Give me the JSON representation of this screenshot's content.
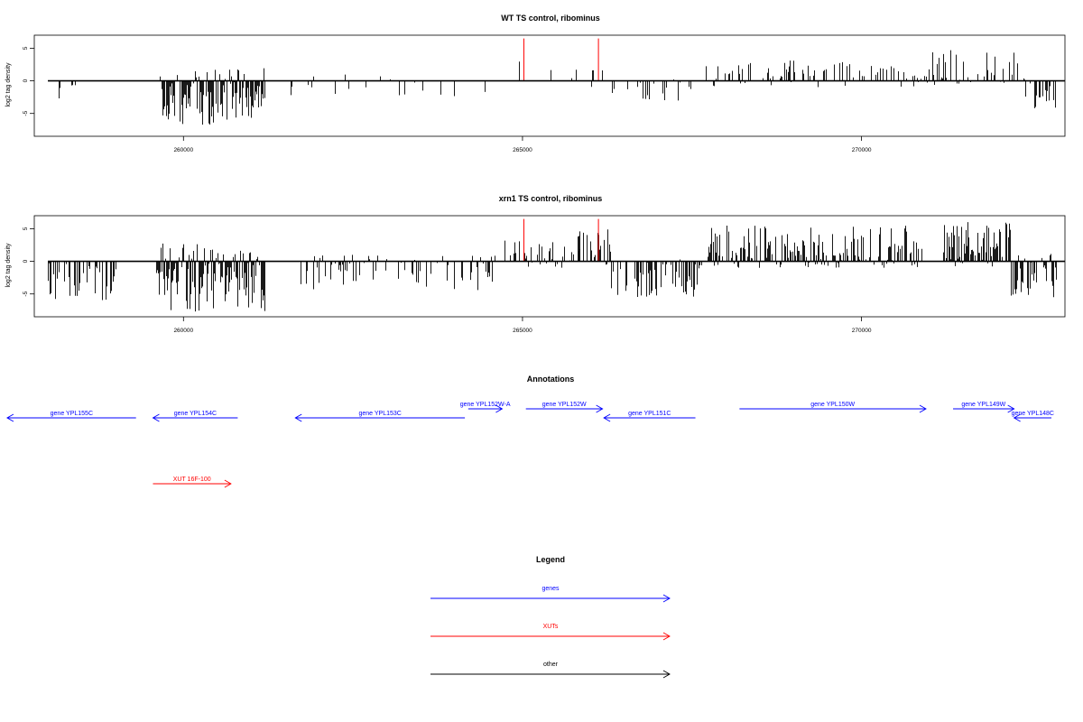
{
  "chart_data": [
    {
      "type": "bar",
      "title": "WT TS control, ribominus",
      "xlabel": "",
      "ylabel": "log2 tag density",
      "xlim": [
        257800,
        273000
      ],
      "ylim": [
        -8.5,
        7
      ],
      "x_ticks": [
        260000,
        265000,
        270000
      ],
      "x_tick_labels": [
        "260000",
        "265000",
        "270000"
      ],
      "y_ticks": [
        -5,
        0,
        5
      ],
      "y_tick_labels": [
        "-5",
        "0",
        "5"
      ],
      "baseline": {
        "x": [
          258000,
          273000
        ],
        "y": 0
      },
      "series": [
        {
          "color": "#000000",
          "regions": [
            {
              "x": [
                258050,
                258800
              ],
              "y": [
                -2.8,
                0.2
              ],
              "density": 0.1
            },
            {
              "x": [
                259650,
                261200
              ],
              "y": [
                -6.8,
                2.0
              ],
              "density": 0.8
            },
            {
              "x": [
                261500,
                264700
              ],
              "y": [
                -2.5,
                1.0
              ],
              "density": 0.07
            },
            {
              "x": [
                264900,
                265650
              ],
              "y": [
                -0.8,
                3.0
              ],
              "density": 0.12
            },
            {
              "x": [
                265650,
                266300
              ],
              "y": [
                -1.0,
                3.0
              ],
              "density": 0.15
            },
            {
              "x": [
                266300,
                267600
              ],
              "y": [
                -3.2,
                0.5
              ],
              "density": 0.25
            },
            {
              "x": [
                267700,
                270700
              ],
              "y": [
                -1.0,
                3.2
              ],
              "density": 0.3
            },
            {
              "x": [
                270700,
                272400
              ],
              "y": [
                -1.0,
                4.7
              ],
              "density": 0.4
            },
            {
              "x": [
                272400,
                272900
              ],
              "y": [
                -4.8,
                0.5
              ],
              "density": 0.35
            }
          ]
        },
        {
          "color": "#ff0000",
          "bars": [
            {
              "x": 265020,
              "y": 6.5
            },
            {
              "x": 266120,
              "y": 6.5
            }
          ]
        }
      ]
    },
    {
      "type": "bar",
      "title": "xrn1 TS control, ribominus",
      "xlabel": "",
      "ylabel": "log2 tag density",
      "xlim": [
        257800,
        273000
      ],
      "ylim": [
        -8.5,
        7
      ],
      "x_ticks": [
        260000,
        265000,
        270000
      ],
      "x_tick_labels": [
        "260000",
        "265000",
        "270000"
      ],
      "y_ticks": [
        -5,
        0,
        5
      ],
      "y_tick_labels": [
        "-5",
        "0",
        "5"
      ],
      "baseline": {
        "x": [
          258000,
          273000
        ],
        "y": 0
      },
      "series": [
        {
          "color": "#000000",
          "regions": [
            {
              "x": [
                258000,
                259000
              ],
              "y": [
                -6.0,
                0.5
              ],
              "density": 0.45
            },
            {
              "x": [
                259600,
                261200
              ],
              "y": [
                -8.0,
                2.8
              ],
              "density": 0.95
            },
            {
              "x": [
                261700,
                264600
              ],
              "y": [
                -4.5,
                1.0
              ],
              "density": 0.3
            },
            {
              "x": [
                264700,
                265900
              ],
              "y": [
                -1.0,
                3.2
              ],
              "density": 0.4
            },
            {
              "x": [
                265800,
                266300
              ],
              "y": [
                -1.0,
                5.0
              ],
              "density": 0.5
            },
            {
              "x": [
                266300,
                267700
              ],
              "y": [
                -5.5,
                0.5
              ],
              "density": 0.6
            },
            {
              "x": [
                267700,
                270900
              ],
              "y": [
                -1.0,
                5.5
              ],
              "density": 0.6
            },
            {
              "x": [
                271200,
                272200
              ],
              "y": [
                -1.0,
                6.2
              ],
              "density": 0.85
            },
            {
              "x": [
                272200,
                272900
              ],
              "y": [
                -5.5,
                1.2
              ],
              "density": 0.7
            }
          ]
        },
        {
          "color": "#ff0000",
          "bars": [
            {
              "x": 265020,
              "y": 6.5
            },
            {
              "x": 266120,
              "y": 6.5
            }
          ]
        }
      ]
    }
  ],
  "annotations": {
    "title": "Annotations",
    "genes_color": "#0000ff",
    "xuts_color": "#ff0000",
    "items": [
      {
        "label": "gene YPL155C",
        "kind": "gene",
        "strand": "-",
        "start": 257400,
        "end": 259300,
        "row": 0
      },
      {
        "label": "gene YPL154C",
        "kind": "gene",
        "strand": "-",
        "start": 259550,
        "end": 260800,
        "row": 0
      },
      {
        "label": "gene YPL153C",
        "kind": "gene",
        "strand": "-",
        "start": 261650,
        "end": 264150,
        "row": 0
      },
      {
        "label": "gene YPL152W-A",
        "kind": "gene",
        "strand": "+",
        "start": 264200,
        "end": 264700,
        "row": 1
      },
      {
        "label": "gene YPL152W",
        "kind": "gene",
        "strand": "+",
        "start": 265050,
        "end": 266180,
        "row": 1
      },
      {
        "label": "gene YPL151C",
        "kind": "gene",
        "strand": "-",
        "start": 266200,
        "end": 267550,
        "row": 0
      },
      {
        "label": "gene YPL150W",
        "kind": "gene",
        "strand": "+",
        "start": 268200,
        "end": 270950,
        "row": 1
      },
      {
        "label": "gene YPL149W",
        "kind": "gene",
        "strand": "+",
        "start": 271350,
        "end": 272250,
        "row": 1
      },
      {
        "label": "gene YPL148C",
        "kind": "gene",
        "strand": "-",
        "start": 272250,
        "end": 272800,
        "row": 0
      },
      {
        "label": "XUT 16F-100",
        "kind": "xut",
        "strand": "+",
        "start": 259550,
        "end": 260700,
        "row": 2
      }
    ]
  },
  "legend": {
    "title": "Legend",
    "items": [
      {
        "label": "genes",
        "color": "#0000ff"
      },
      {
        "label": "XUTs",
        "color": "#ff0000"
      },
      {
        "label": "other",
        "color": "#000000"
      }
    ]
  }
}
